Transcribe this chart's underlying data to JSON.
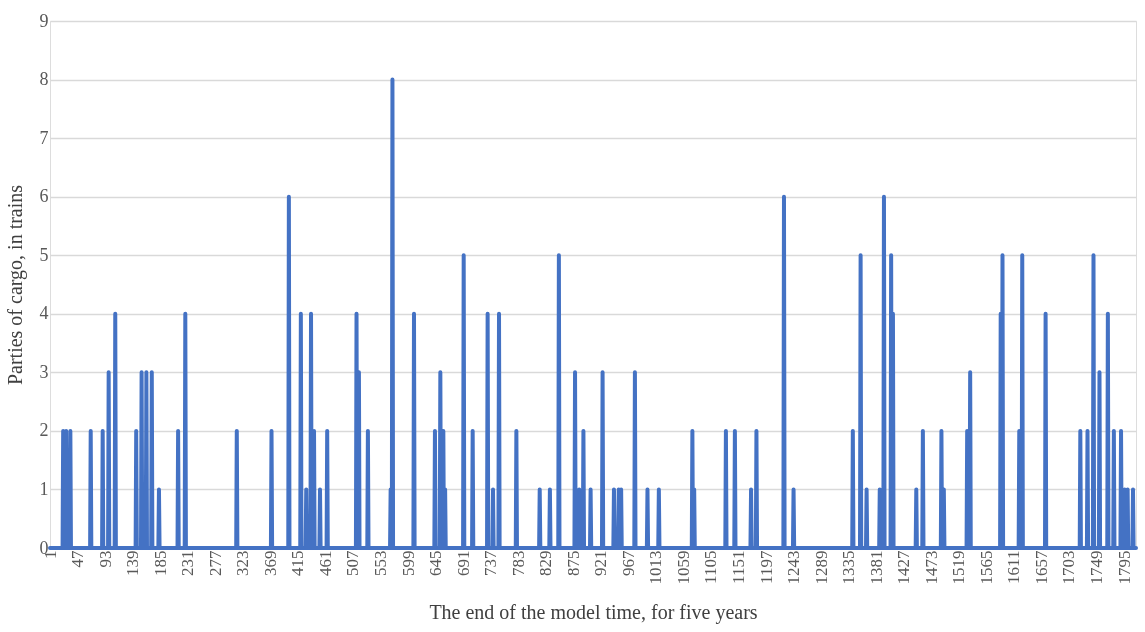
{
  "chart_data": {
    "type": "line",
    "xlabel": "The end of the model time, for five years",
    "ylabel": "Parties of cargo, in trains",
    "xlim": [
      1,
      1815
    ],
    "xticks": [
      1,
      47,
      93,
      139,
      185,
      231,
      277,
      323,
      369,
      415,
      461,
      507,
      553,
      599,
      645,
      691,
      737,
      783,
      829,
      875,
      921,
      967,
      1013,
      1059,
      1105,
      1151,
      1197,
      1243,
      1289,
      1335,
      1381,
      1427,
      1473,
      1519,
      1565,
      1611,
      1657,
      1703,
      1749,
      1795
    ],
    "ylim": [
      0,
      9
    ],
    "yticks": [
      0,
      1,
      2,
      3,
      4,
      5,
      6,
      7,
      8,
      9
    ],
    "grid": "y",
    "marker": "none",
    "line_style": "solid",
    "series": [
      {
        "color": "#4472c4",
        "x": [
          1,
          22,
          23,
          24,
          27,
          28,
          29,
          34,
          35,
          36,
          68,
          69,
          70,
          88,
          89,
          90,
          98,
          99,
          100,
          109,
          110,
          111,
          144,
          145,
          146,
          153,
          154,
          155,
          161,
          162,
          163,
          170,
          171,
          172,
          182,
          183,
          184,
          214,
          215,
          216,
          226,
          227,
          228,
          312,
          313,
          314,
          370,
          371,
          372,
          399,
          400,
          401,
          419,
          420,
          421,
          428,
          429,
          430,
          436,
          437,
          438,
          441,
          442,
          443,
          451,
          452,
          453,
          463,
          464,
          465,
          512,
          513,
          514,
          516,
          517,
          518,
          531,
          532,
          533,
          569,
          570,
          571,
          572,
          573,
          574,
          608,
          609,
          610,
          643,
          644,
          645,
          652,
          653,
          654,
          657,
          658,
          659,
          660,
          661,
          662,
          691,
          692,
          693,
          706,
          707,
          708,
          731,
          732,
          733,
          740,
          741,
          742,
          750,
          751,
          752,
          779,
          780,
          781,
          818,
          819,
          820,
          835,
          836,
          837,
          850,
          851,
          852,
          877,
          878,
          879,
          884,
          885,
          886,
          891,
          892,
          893,
          903,
          904,
          905,
          923,
          924,
          925,
          942,
          943,
          944,
          950,
          951,
          952,
          954,
          955,
          956,
          977,
          978,
          979,
          998,
          999,
          1000,
          1017,
          1018,
          1019,
          1073,
          1074,
          1075,
          1076,
          1077,
          1078,
          1129,
          1130,
          1131,
          1144,
          1145,
          1146,
          1171,
          1172,
          1173,
          1180,
          1181,
          1182,
          1226,
          1227,
          1228,
          1242,
          1243,
          1244,
          1341,
          1342,
          1343,
          1354,
          1355,
          1356,
          1364,
          1365,
          1366,
          1386,
          1387,
          1388,
          1393,
          1394,
          1395,
          1405,
          1406,
          1407,
          1408,
          1409,
          1410,
          1447,
          1448,
          1449,
          1458,
          1459,
          1460,
          1489,
          1490,
          1491,
          1493,
          1494,
          1495,
          1532,
          1533,
          1534,
          1537,
          1538,
          1539,
          1588,
          1589,
          1590,
          1591,
          1592,
          1593,
          1619,
          1620,
          1621,
          1624,
          1625,
          1626,
          1663,
          1664,
          1665,
          1721,
          1722,
          1723,
          1733,
          1734,
          1735,
          1743,
          1744,
          1745,
          1753,
          1754,
          1755,
          1767,
          1768,
          1769,
          1777,
          1778,
          1779,
          1789,
          1790,
          1791,
          1795,
          1796,
          1797,
          1800,
          1801,
          1802,
          1809,
          1810,
          1811,
          1815
        ],
        "values": [
          0,
          0,
          2,
          0,
          0,
          2,
          0,
          0,
          2,
          0,
          0,
          2,
          0,
          0,
          2,
          0,
          0,
          3,
          0,
          0,
          4,
          0,
          0,
          2,
          0,
          0,
          3,
          0,
          0,
          3,
          0,
          0,
          3,
          0,
          0,
          1,
          0,
          0,
          2,
          0,
          0,
          4,
          0,
          0,
          2,
          0,
          0,
          2,
          0,
          0,
          6,
          0,
          0,
          4,
          0,
          0,
          1,
          0,
          0,
          4,
          0,
          0,
          2,
          0,
          0,
          1,
          0,
          0,
          2,
          0,
          0,
          4,
          0,
          0,
          3,
          0,
          0,
          2,
          0,
          0,
          1,
          0,
          0,
          8,
          0,
          0,
          4,
          0,
          0,
          2,
          0,
          0,
          3,
          0,
          0,
          2,
          0,
          0,
          1,
          0,
          0,
          5,
          0,
          0,
          2,
          0,
          0,
          4,
          0,
          0,
          1,
          0,
          0,
          4,
          0,
          0,
          2,
          0,
          0,
          1,
          0,
          0,
          1,
          0,
          0,
          5,
          0,
          0,
          3,
          0,
          0,
          1,
          0,
          0,
          2,
          0,
          0,
          1,
          0,
          0,
          3,
          0,
          0,
          1,
          0,
          0,
          1,
          0,
          0,
          1,
          0,
          0,
          3,
          0,
          0,
          1,
          0,
          0,
          1,
          0,
          0,
          2,
          0,
          0,
          1,
          0,
          0,
          2,
          0,
          0,
          2,
          0,
          0,
          1,
          0,
          0,
          2,
          0,
          0,
          6,
          0,
          0,
          1,
          0,
          0,
          2,
          0,
          0,
          5,
          0,
          0,
          1,
          0,
          0,
          1,
          0,
          0,
          6,
          0,
          0,
          5,
          0,
          0,
          4,
          0,
          0,
          1,
          0,
          0,
          2,
          0,
          0,
          2,
          0,
          0,
          1,
          0,
          0,
          2,
          0,
          0,
          3,
          0,
          0,
          4,
          0,
          0,
          5,
          0,
          0,
          2,
          0,
          0,
          5,
          0,
          0,
          4,
          0,
          0,
          2,
          0,
          0,
          2,
          0,
          0,
          5,
          0,
          0,
          3,
          0,
          0,
          4,
          0,
          0,
          2,
          0,
          0,
          2,
          0,
          0,
          1,
          0,
          0,
          1,
          0,
          0,
          1,
          0,
          0
        ]
      }
    ]
  }
}
